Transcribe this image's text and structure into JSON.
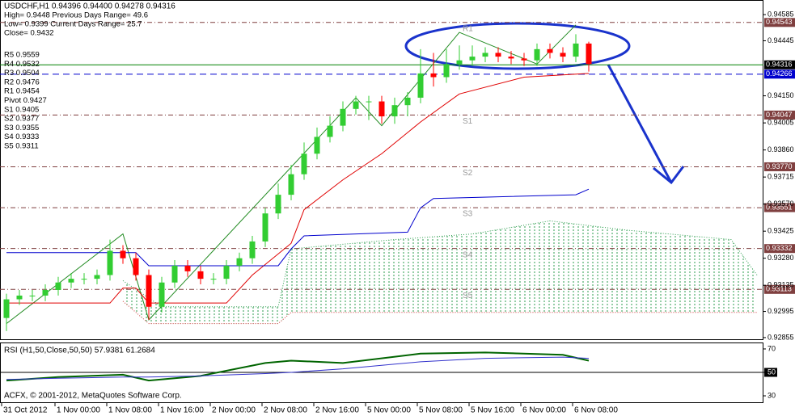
{
  "chart_data": [
    {
      "type": "candlestick",
      "title": "USDCHF,H1  0.94396 0.94400 0.94278 0.94316",
      "annotations": [
        "High= 0.9448    Previous Days Range= 49.6",
        "Low= 0.9399    Current Days Range= 25.7",
        "Close= 0.9432",
        "R5 0.9559",
        "R4 0.9532",
        "R3 0.9504",
        "R2 0.9476",
        "R1 0.9454",
        "Pivot 0.9427",
        "S1 0.9405",
        "S2 0.9377",
        "S3 0.9355",
        "S4 0.9333",
        "S5 0.9311"
      ],
      "open": [
        0.9296,
        0.9306,
        0.9308,
        0.9308,
        0.9311,
        0.9315,
        0.9317,
        0.9317,
        0.9319,
        0.9332,
        0.9328,
        0.9319,
        0.9302,
        0.9315,
        0.9324,
        0.9321,
        0.9317,
        0.9317,
        0.9324,
        0.9328,
        0.9337,
        0.9352,
        0.9362,
        0.9373,
        0.9384,
        0.9393,
        0.9399,
        0.9408,
        0.9412,
        0.9412,
        0.9404,
        0.941,
        0.9414,
        0.9427,
        0.9425,
        0.9432,
        0.9434,
        0.9436,
        0.9438,
        0.9436,
        0.9435,
        0.9434,
        0.944,
        0.9438,
        0.9436,
        0.9443
      ],
      "high": [
        0.9309,
        0.9311,
        0.9311,
        0.9314,
        0.9318,
        0.932,
        0.932,
        0.9322,
        0.9338,
        0.9335,
        0.9331,
        0.9322,
        0.9318,
        0.9327,
        0.9327,
        0.9324,
        0.932,
        0.9327,
        0.9331,
        0.934,
        0.9355,
        0.9368,
        0.9378,
        0.939,
        0.9398,
        0.9404,
        0.9412,
        0.9415,
        0.9415,
        0.9415,
        0.9414,
        0.9417,
        0.944,
        0.9438,
        0.944,
        0.9442,
        0.9442,
        0.9441,
        0.9441,
        0.9439,
        0.9438,
        0.9443,
        0.9443,
        0.9441,
        0.9448,
        0.9444
      ],
      "low": [
        0.9289,
        0.9303,
        0.9305,
        0.9305,
        0.9308,
        0.9312,
        0.9314,
        0.9314,
        0.9316,
        0.9325,
        0.9316,
        0.9295,
        0.9299,
        0.9312,
        0.9318,
        0.9314,
        0.9314,
        0.9314,
        0.9321,
        0.9325,
        0.9334,
        0.9349,
        0.9359,
        0.937,
        0.9381,
        0.939,
        0.9396,
        0.9405,
        0.9402,
        0.94,
        0.94,
        0.9404,
        0.9411,
        0.942,
        0.9422,
        0.9429,
        0.9431,
        0.9433,
        0.9433,
        0.9432,
        0.9431,
        0.9431,
        0.9435,
        0.9433,
        0.9433,
        0.9428
      ],
      "close": [
        0.9306,
        0.9308,
        0.9308,
        0.9311,
        0.9315,
        0.9317,
        0.9317,
        0.9319,
        0.9332,
        0.9328,
        0.9319,
        0.9302,
        0.9315,
        0.9324,
        0.9321,
        0.9317,
        0.9317,
        0.9324,
        0.9328,
        0.9337,
        0.9352,
        0.9362,
        0.9373,
        0.9384,
        0.9393,
        0.9399,
        0.9408,
        0.9412,
        0.9412,
        0.9404,
        0.941,
        0.9414,
        0.9427,
        0.9425,
        0.9432,
        0.9434,
        0.9436,
        0.9438,
        0.9436,
        0.9435,
        0.9434,
        0.944,
        0.9438,
        0.9436,
        0.9443,
        0.9432
      ],
      "up_color": "#32cd32",
      "down_color": "#ff0000",
      "lines": [
        {
          "color": "#228b22",
          "x": [
            0,
            9,
            11,
            27,
            29,
            35,
            41,
            44
          ],
          "values": [
            0.9293,
            0.9341,
            0.9295,
            0.9414,
            0.9399,
            0.9449,
            0.9432,
            0.9453
          ]
        },
        {
          "color": "#e00000",
          "x": [
            0,
            8,
            9,
            10,
            11,
            17,
            19,
            22,
            23,
            26,
            29,
            32,
            35,
            40,
            45
          ],
          "values": [
            0.9304,
            0.9304,
            0.9312,
            0.9312,
            0.9304,
            0.9304,
            0.9319,
            0.9336,
            0.9354,
            0.937,
            0.9384,
            0.9401,
            0.9416,
            0.9425,
            0.9427
          ]
        },
        {
          "color": "#0000cd",
          "x": [
            0,
            10,
            11,
            21,
            22,
            23,
            31,
            32,
            33,
            44,
            45
          ],
          "values": [
            0.9331,
            0.9331,
            0.9324,
            0.9324,
            0.9333,
            0.934,
            0.9342,
            0.9355,
            0.936,
            0.9362,
            0.9365
          ]
        }
      ],
      "cloud": {
        "color": "#2e9e4f",
        "edge_color": "#cc3333",
        "upper": {
          "x": [
            9,
            12,
            21,
            22,
            30,
            36,
            42,
            48,
            56,
            58
          ],
          "values": [
            0.9316,
            0.9302,
            0.9302,
            0.9333,
            0.9338,
            0.9341,
            0.9348,
            0.9343,
            0.9338,
            0.9319
          ]
        },
        "lower": {
          "x": [
            9,
            11,
            21,
            22,
            58
          ],
          "values": [
            0.9305,
            0.9293,
            0.9293,
            0.9299,
            0.9299
          ]
        }
      },
      "levels": [
        {
          "name": "R1",
          "value": 0.94543,
          "color": "#7f3f3f",
          "style": "dashdot"
        },
        {
          "value": 0.94316,
          "color": "#008000",
          "style": "solid",
          "box": "#000000"
        },
        {
          "value": 0.94266,
          "color": "#0000cd",
          "style": "dash"
        },
        {
          "name": "S1",
          "value": 0.94047,
          "color": "#7f3f3f",
          "style": "dashdot"
        },
        {
          "name": "S2",
          "value": 0.9377,
          "label": "0.93770",
          "color": "#7f3f3f",
          "style": "dashdot"
        },
        {
          "name": "S3",
          "value": 0.93551,
          "color": "#7f3f3f",
          "style": "dashdot"
        },
        {
          "name": "S4",
          "value": 0.93332,
          "color": "#7f3f3f",
          "style": "dashdot"
        },
        {
          "name": "S5",
          "value": 0.93113,
          "color": "#7f3f3f",
          "style": "dashdot"
        }
      ],
      "xlim": [
        -0.5,
        58.5
      ],
      "ylim": [
        0.92846,
        0.9462
      ],
      "xticks": [
        {
          "value": -0.375,
          "label": "31 Oct 2012"
        },
        {
          "value": 3.75,
          "label": "1 Nov 00:00"
        },
        {
          "value": 7.75,
          "label": "1 Nov 08:00"
        },
        {
          "value": 11.75,
          "label": "1 Nov 16:00"
        },
        {
          "value": 15.75,
          "label": "2 Nov 00:00"
        },
        {
          "value": 19.75,
          "label": "2 Nov 08:00"
        },
        {
          "value": 23.75,
          "label": "2 Nov 16:00"
        },
        {
          "value": 27.75,
          "label": "5 Nov 00:00"
        },
        {
          "value": 31.75,
          "label": "5 Nov 08:00"
        },
        {
          "value": 35.75,
          "label": "5 Nov 16:00"
        },
        {
          "value": 39.75,
          "label": "6 Nov 00:00"
        },
        {
          "value": 43.75,
          "label": "6 Nov 08:00"
        }
      ],
      "yticks": [
        0.94585,
        0.94445,
        {
          "value": 0.9415,
          "label": "0.94150"
        },
        0.94005,
        {
          "value": 0.9386,
          "label": "0.93860"
        },
        0.93715,
        {
          "value": 0.9357,
          "label": "0.93570"
        },
        0.93425,
        {
          "value": 0.9328,
          "label": "0.93280"
        },
        0.93135,
        0.92995,
        0.92855
      ]
    },
    {
      "type": "line",
      "title": "RSI (H1,50,Close,50,50) 57.9381 61.2684",
      "annotation": "ACFX, © 2001-2012, MetaQuotes Software Corp.",
      "x": [
        0,
        4,
        9,
        11,
        15,
        20,
        22,
        26,
        32,
        37,
        43,
        45
      ],
      "series": [
        {
          "color": "#006400",
          "values": [
            43,
            46,
            48,
            43,
            47,
            58,
            60,
            58,
            66,
            67,
            65,
            60
          ]
        },
        {
          "color": "#3333cc",
          "values": [
            44,
            45,
            46,
            46,
            47,
            49,
            50,
            53,
            59,
            62,
            63,
            62
          ]
        }
      ],
      "ylim": [
        24.5,
        74.8
      ],
      "yticks": [
        70,
        50,
        30
      ],
      "boxed_ticks": [
        50
      ],
      "levels": [
        50
      ]
    }
  ]
}
